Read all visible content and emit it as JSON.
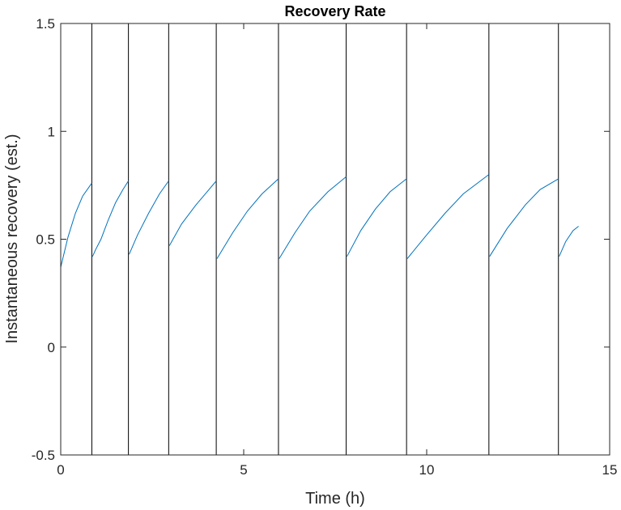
{
  "chart_data": {
    "type": "line",
    "title": "Recovery Rate",
    "xlabel": "Time (h)",
    "ylabel": "Instantaneous recovery (est.)",
    "xlim": [
      0,
      15
    ],
    "ylim": [
      -0.5,
      1.5
    ],
    "xticks": [
      0,
      5,
      10,
      15
    ],
    "yticks": [
      -0.5,
      0,
      0.5,
      1,
      1.5
    ],
    "xtick_labels": [
      "0",
      "5",
      "10",
      "15"
    ],
    "ytick_labels": [
      "-0.5",
      "0",
      "0.5",
      "1",
      "1.5"
    ],
    "grid": false,
    "line_color": "#0072BD",
    "marker_color": "#000000",
    "event_markers_x": [
      0.85,
      1.85,
      2.95,
      4.25,
      5.95,
      7.8,
      9.45,
      11.7,
      13.6
    ],
    "series": [
      {
        "segments": [
          {
            "x": [
              0.0,
              0.2,
              0.4,
              0.6,
              0.85
            ],
            "y": [
              0.37,
              0.51,
              0.62,
              0.7,
              0.76
            ]
          },
          {
            "x": [
              0.87,
              0.95,
              1.1,
              1.3,
              1.5,
              1.7,
              1.85
            ],
            "y": [
              0.42,
              0.45,
              0.5,
              0.59,
              0.67,
              0.73,
              0.77
            ]
          },
          {
            "x": [
              1.87,
              2.1,
              2.4,
              2.7,
              2.95
            ],
            "y": [
              0.43,
              0.52,
              0.62,
              0.71,
              0.77
            ]
          },
          {
            "x": [
              2.97,
              3.3,
              3.7,
              4.0,
              4.25
            ],
            "y": [
              0.47,
              0.57,
              0.66,
              0.72,
              0.77
            ]
          },
          {
            "x": [
              4.27,
              4.7,
              5.1,
              5.5,
              5.95
            ],
            "y": [
              0.41,
              0.53,
              0.63,
              0.71,
              0.78
            ]
          },
          {
            "x": [
              5.97,
              6.4,
              6.8,
              7.3,
              7.8
            ],
            "y": [
              0.41,
              0.53,
              0.63,
              0.72,
              0.79
            ]
          },
          {
            "x": [
              7.82,
              8.2,
              8.6,
              9.0,
              9.45
            ],
            "y": [
              0.42,
              0.54,
              0.64,
              0.72,
              0.78
            ]
          },
          {
            "x": [
              9.47,
              10.0,
              10.5,
              11.0,
              11.7
            ],
            "y": [
              0.41,
              0.52,
              0.62,
              0.71,
              0.8
            ]
          },
          {
            "x": [
              11.72,
              12.2,
              12.7,
              13.1,
              13.6
            ],
            "y": [
              0.42,
              0.55,
              0.66,
              0.73,
              0.78
            ]
          },
          {
            "x": [
              13.62,
              13.8,
              14.0,
              14.15
            ],
            "y": [
              0.42,
              0.49,
              0.54,
              0.56
            ]
          }
        ]
      }
    ]
  }
}
